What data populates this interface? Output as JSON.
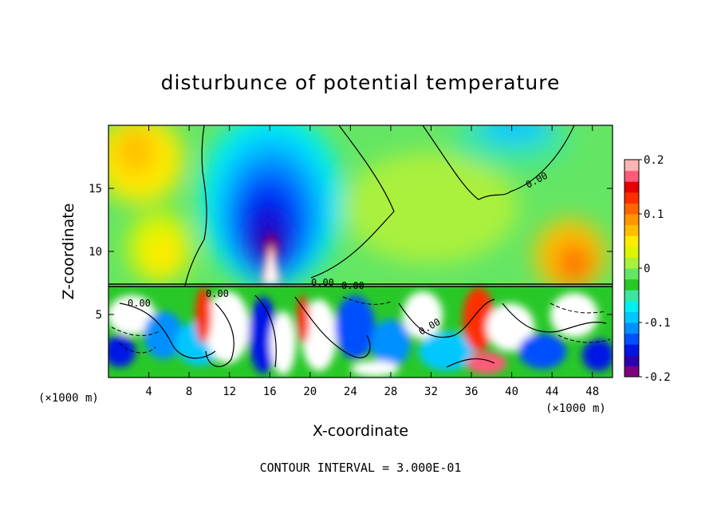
{
  "chart_data": {
    "type": "heatmap",
    "title": "disturbunce of potential temperature",
    "xlabel": "X-coordinate",
    "ylabel": "Z-coordinate",
    "x_unit": "(×1000 m)",
    "x_unit_right": "(×1000 m)",
    "xlim": [
      0,
      50
    ],
    "ylim": [
      0,
      20
    ],
    "x_ticks": [
      4,
      8,
      12,
      16,
      20,
      24,
      28,
      32,
      36,
      40,
      44,
      48
    ],
    "y_ticks": [
      5,
      10,
      15
    ],
    "colorbar": {
      "vmin": -0.2,
      "vmax": 0.2,
      "ticks": [
        -0.2,
        -0.1,
        0,
        0.1,
        0.2
      ],
      "tick_labels": [
        "-0.2",
        "-0.1",
        "0",
        "0.1",
        "0.2"
      ],
      "colors": [
        "#7f007f",
        "#2a00b2",
        "#0014e6",
        "#0050ff",
        "#0090ff",
        "#00c8ff",
        "#00f0f0",
        "#3ce6a0",
        "#28c828",
        "#64e664",
        "#aaf03c",
        "#dcf500",
        "#ffeb00",
        "#ffbe00",
        "#ff9600",
        "#ff6400",
        "#ff2d00",
        "#e60000",
        "#ff5a78",
        "#ffb4b4"
      ]
    },
    "contour_interval_label": "CONTOUR INTERVAL = 3.000E-01",
    "contour_labels": [
      "0.00",
      "0.00",
      "0.00",
      "0.00",
      "0.00",
      "0.00"
    ],
    "features": [
      {
        "kind": "cold_anomaly",
        "x": 16,
        "z": 12.5,
        "value": -0.2
      },
      {
        "kind": "cold_anomaly",
        "x": 40,
        "z": 19.5,
        "value": -0.05
      },
      {
        "kind": "warm_anomaly",
        "x": 46,
        "z": 9,
        "value": 0.15
      },
      {
        "kind": "warm_anomaly",
        "x": 2,
        "z": 18,
        "value": 0.08
      },
      {
        "kind": "warm_anomaly",
        "x": 11,
        "z": 9.5,
        "value": 0.1
      },
      {
        "kind": "warm_core",
        "x": 16,
        "z": 9,
        "value": 0.2
      }
    ],
    "zero_contour_upper": [
      [
        9.5,
        7.5
      ],
      [
        9.7,
        9.5
      ],
      [
        9.7,
        12.5
      ],
      [
        9.3,
        14.5
      ],
      [
        9.3,
        17.5
      ],
      [
        9.5,
        20
      ]
    ],
    "zero_contour_right": [
      [
        23,
        20
      ],
      [
        28,
        14
      ],
      [
        25,
        10.5
      ],
      [
        20,
        8.2
      ]
    ],
    "zero_contour_top": [
      [
        31.5,
        20
      ],
      [
        36,
        14.5
      ],
      [
        39,
        14
      ],
      [
        45,
        16.5
      ],
      [
        46.5,
        20
      ]
    ],
    "inversion_z": 7.3
  }
}
